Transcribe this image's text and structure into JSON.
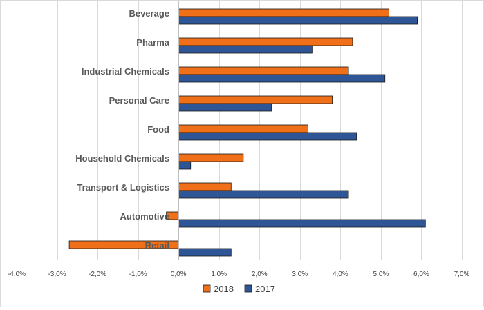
{
  "chart_data": {
    "type": "bar",
    "orientation": "horizontal",
    "categories": [
      "Beverage",
      "Pharma",
      "Industrial Chemicals",
      "Personal Care",
      "Food",
      "Household Chemicals",
      "Transport & Logistics",
      "Automotive",
      "Retail"
    ],
    "series": [
      {
        "name": "2018",
        "color": "#f07019",
        "values": [
          5.2,
          4.3,
          4.2,
          3.8,
          3.2,
          1.6,
          1.3,
          -0.3,
          -2.7
        ]
      },
      {
        "name": "2017",
        "color": "#2e5596",
        "values": [
          5.9,
          3.3,
          5.1,
          2.3,
          4.4,
          0.3,
          4.2,
          6.1,
          1.3
        ]
      }
    ],
    "xlim": [
      -4,
      7
    ],
    "xticks": [
      -4,
      -3,
      -2,
      -1,
      0,
      1,
      2,
      3,
      4,
      5,
      6,
      7
    ],
    "xtick_labels": [
      "-4,0%",
      "-3,0%",
      "-2,0%",
      "-1,0%",
      "0,0%",
      "1,0%",
      "2,0%",
      "3,0%",
      "4,0%",
      "5,0%",
      "6,0%",
      "7,0%"
    ],
    "grid": true,
    "legend_position": "bottom",
    "title": "",
    "xlabel": "",
    "ylabel": ""
  }
}
